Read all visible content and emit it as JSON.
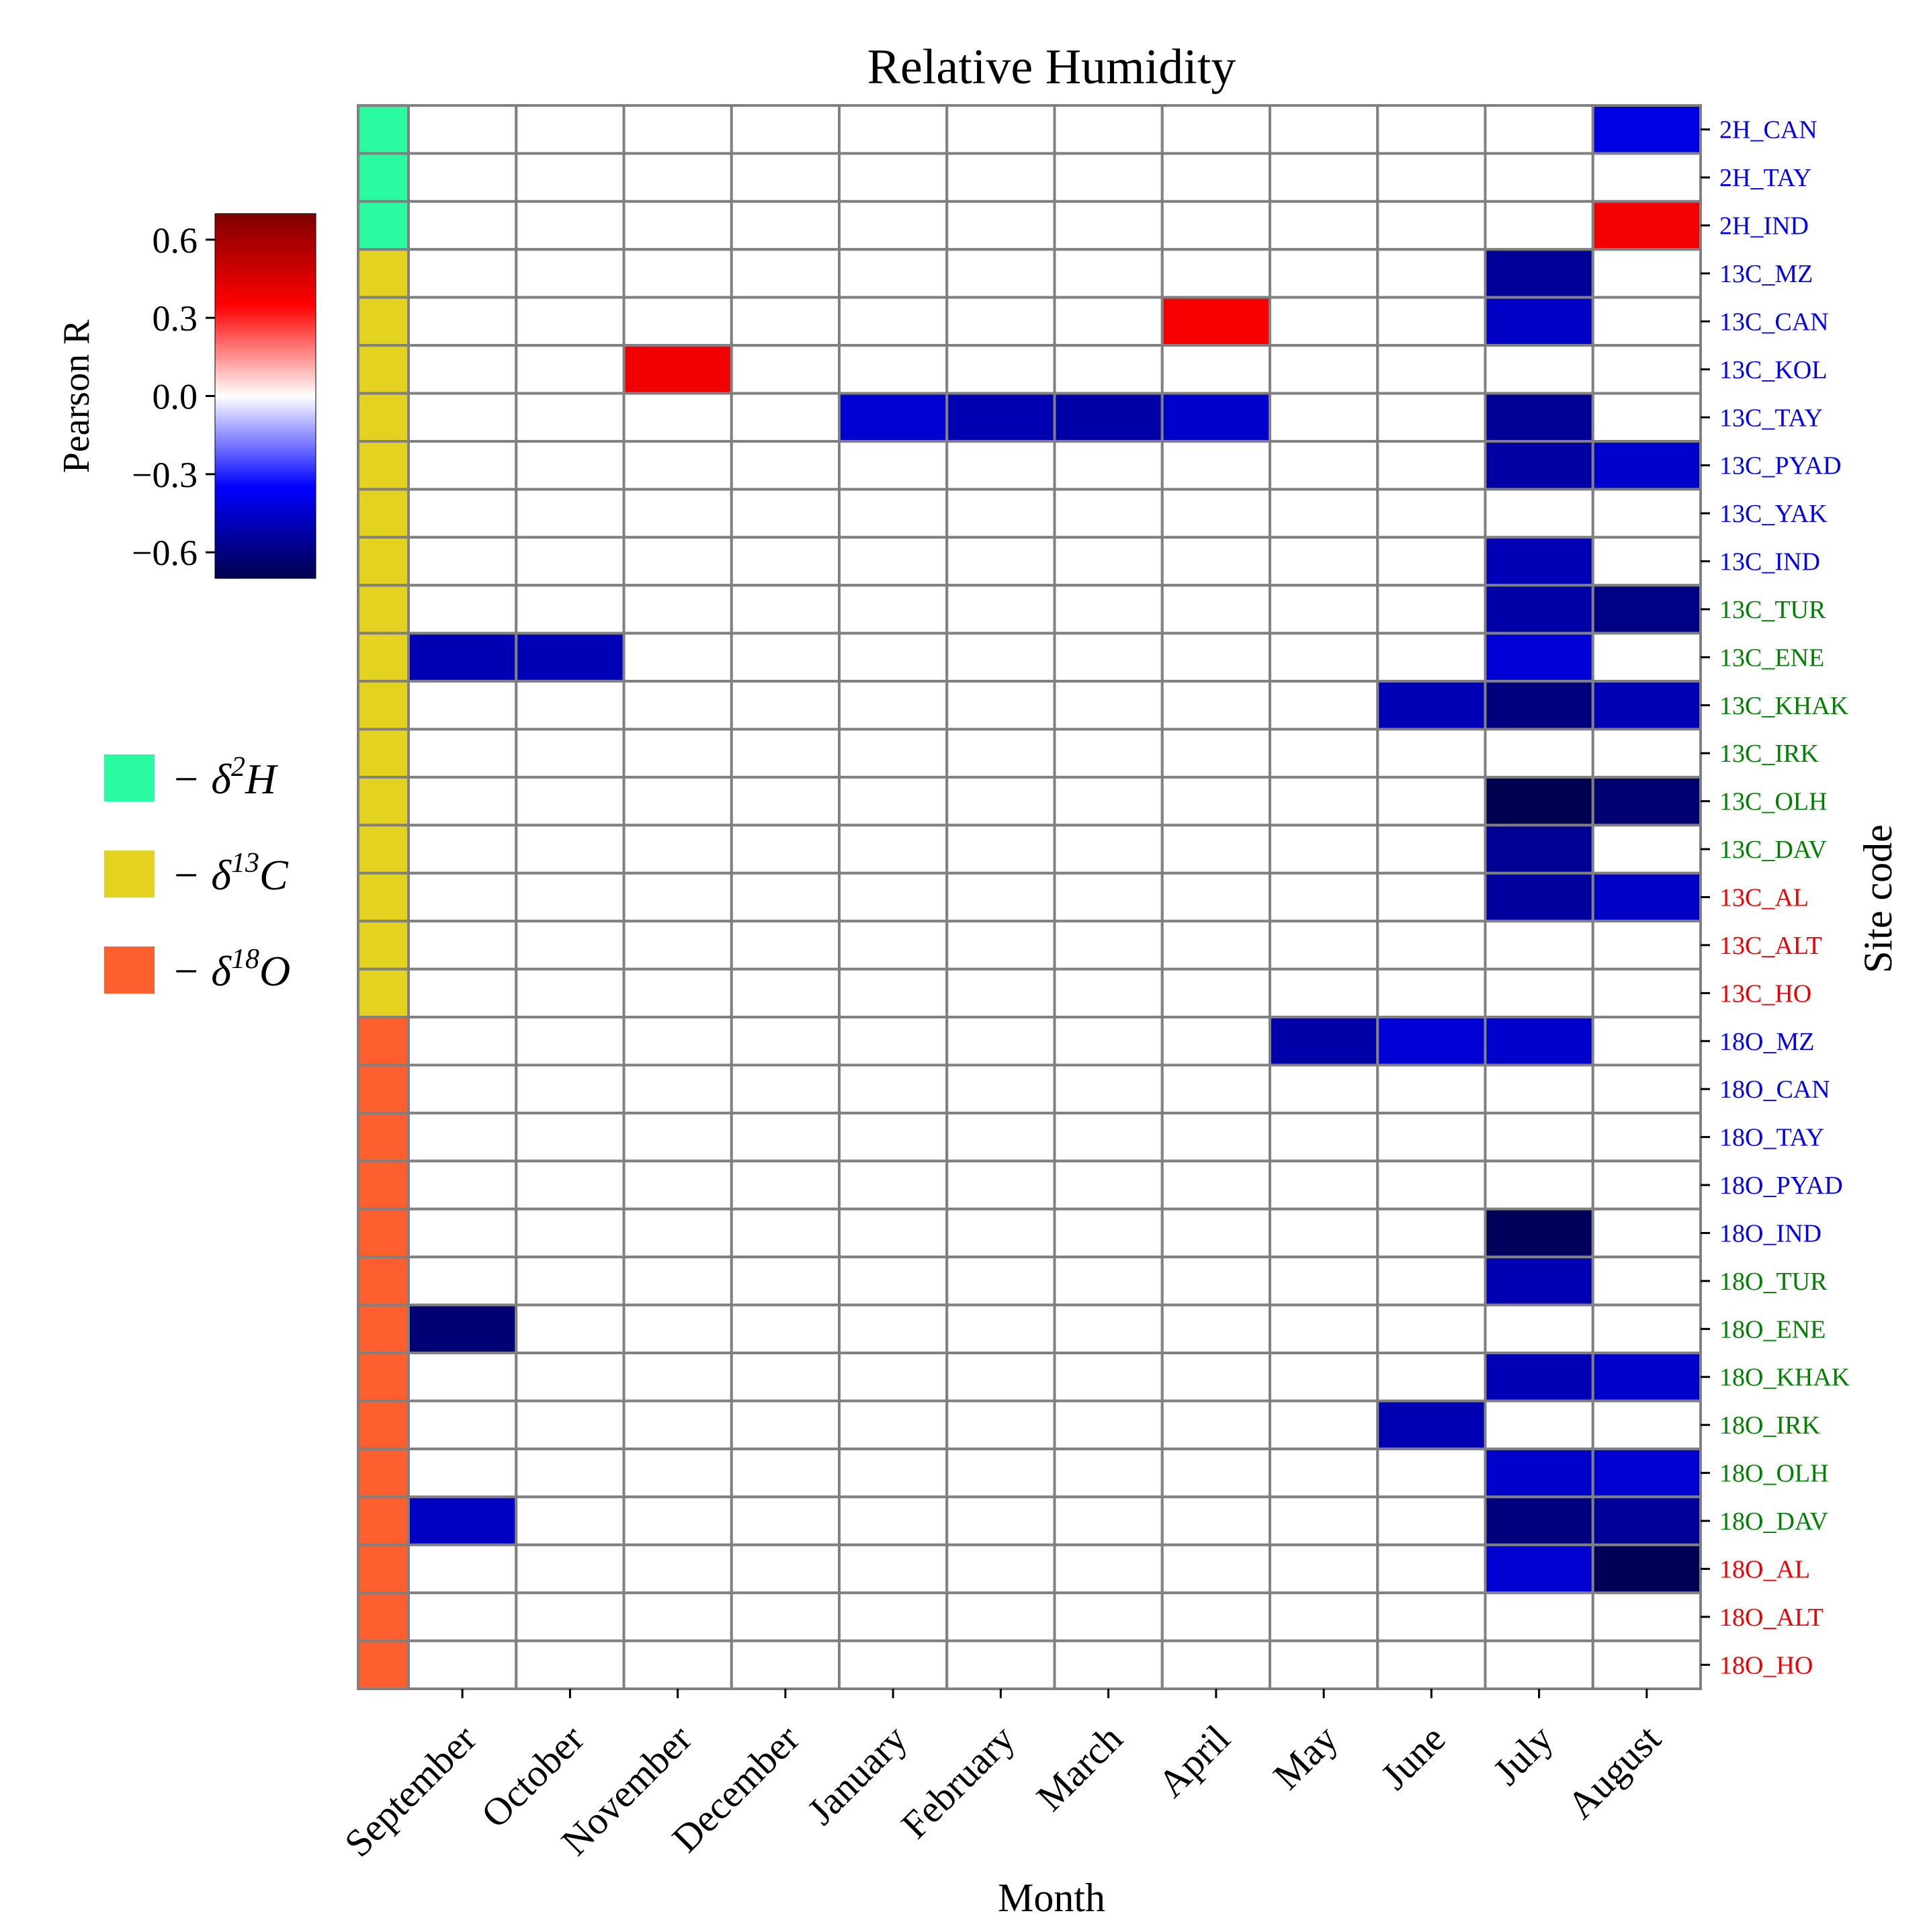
{
  "chart_data": {
    "type": "heatmap",
    "title": "Relative Humidity",
    "xlabel": "Month",
    "ylabel": "Site code",
    "colorbar": {
      "label": "Pearson R",
      "ticks": [
        "0.6",
        "0.3",
        "0.0",
        "−0.3",
        "−0.6"
      ],
      "tick_values": [
        0.6,
        0.3,
        0.0,
        -0.3,
        -0.6
      ],
      "range": [
        -0.7,
        0.7
      ],
      "colormap": "seismic"
    },
    "x_categories": [
      "September",
      "October",
      "November",
      "December",
      "January",
      "February",
      "March",
      "April",
      "May",
      "June",
      "July",
      "August"
    ],
    "rows": [
      {
        "site": "2H_CAN",
        "group": "2H",
        "label_color": "#0000ee"
      },
      {
        "site": "2H_TAY",
        "group": "2H",
        "label_color": "#0000ee"
      },
      {
        "site": "2H_IND",
        "group": "2H",
        "label_color": "#0000ee"
      },
      {
        "site": "13C_MZ",
        "group": "13C",
        "label_color": "#0000ee"
      },
      {
        "site": "13C_CAN",
        "group": "13C",
        "label_color": "#0000ee"
      },
      {
        "site": "13C_KOL",
        "group": "13C",
        "label_color": "#0000ee"
      },
      {
        "site": "13C_TAY",
        "group": "13C",
        "label_color": "#0000ee"
      },
      {
        "site": "13C_PYAD",
        "group": "13C",
        "label_color": "#0000ee"
      },
      {
        "site": "13C_YAK",
        "group": "13C",
        "label_color": "#0000ee"
      },
      {
        "site": "13C_IND",
        "group": "13C",
        "label_color": "#0000ee"
      },
      {
        "site": "13C_TUR",
        "group": "13C",
        "label_color": "#008000"
      },
      {
        "site": "13C_ENE",
        "group": "13C",
        "label_color": "#008000"
      },
      {
        "site": "13C_KHAK",
        "group": "13C",
        "label_color": "#008000"
      },
      {
        "site": "13C_IRK",
        "group": "13C",
        "label_color": "#008000"
      },
      {
        "site": "13C_OLH",
        "group": "13C",
        "label_color": "#008000"
      },
      {
        "site": "13C_DAV",
        "group": "13C",
        "label_color": "#008000"
      },
      {
        "site": "13C_AL",
        "group": "13C",
        "label_color": "#ee0000"
      },
      {
        "site": "13C_ALT",
        "group": "13C",
        "label_color": "#ee0000"
      },
      {
        "site": "13C_HO",
        "group": "13C",
        "label_color": "#ee0000"
      },
      {
        "site": "18O_MZ",
        "group": "18O",
        "label_color": "#0000ee"
      },
      {
        "site": "18O_CAN",
        "group": "18O",
        "label_color": "#0000ee"
      },
      {
        "site": "18O_TAY",
        "group": "18O",
        "label_color": "#0000ee"
      },
      {
        "site": "18O_PYAD",
        "group": "18O",
        "label_color": "#0000ee"
      },
      {
        "site": "18O_IND",
        "group": "18O",
        "label_color": "#0000ee"
      },
      {
        "site": "18O_TUR",
        "group": "18O",
        "label_color": "#008000"
      },
      {
        "site": "18O_ENE",
        "group": "18O",
        "label_color": "#008000"
      },
      {
        "site": "18O_KHAK",
        "group": "18O",
        "label_color": "#008000"
      },
      {
        "site": "18O_IRK",
        "group": "18O",
        "label_color": "#008000"
      },
      {
        "site": "18O_OLH",
        "group": "18O",
        "label_color": "#008000"
      },
      {
        "site": "18O_DAV",
        "group": "18O",
        "label_color": "#008000"
      },
      {
        "site": "18O_AL",
        "group": "18O",
        "label_color": "#ee0000"
      },
      {
        "site": "18O_ALT",
        "group": "18O",
        "label_color": "#ee0000"
      },
      {
        "site": "18O_HO",
        "group": "18O",
        "label_color": "#ee0000"
      }
    ],
    "values": [
      [
        null,
        null,
        null,
        null,
        null,
        null,
        null,
        null,
        null,
        null,
        null,
        -0.4
      ],
      [
        null,
        null,
        null,
        null,
        null,
        null,
        null,
        null,
        null,
        null,
        null,
        null
      ],
      [
        null,
        null,
        null,
        null,
        null,
        null,
        null,
        null,
        null,
        null,
        null,
        0.38
      ],
      [
        null,
        null,
        null,
        null,
        null,
        null,
        null,
        null,
        null,
        null,
        -0.55,
        null
      ],
      [
        null,
        null,
        null,
        null,
        null,
        null,
        null,
        0.37,
        null,
        null,
        -0.46,
        null
      ],
      [
        null,
        null,
        0.39,
        null,
        null,
        null,
        null,
        null,
        null,
        null,
        null,
        null
      ],
      [
        null,
        null,
        null,
        null,
        -0.44,
        -0.5,
        -0.52,
        -0.45,
        null,
        null,
        -0.56,
        null
      ],
      [
        null,
        null,
        null,
        null,
        null,
        null,
        null,
        null,
        null,
        null,
        -0.53,
        -0.45
      ],
      [
        null,
        null,
        null,
        null,
        null,
        null,
        null,
        null,
        null,
        null,
        null,
        null
      ],
      [
        null,
        null,
        null,
        null,
        null,
        null,
        null,
        null,
        null,
        null,
        -0.49,
        null
      ],
      [
        null,
        null,
        null,
        null,
        null,
        null,
        null,
        null,
        null,
        null,
        -0.52,
        -0.59
      ],
      [
        -0.5,
        -0.49,
        null,
        null,
        null,
        null,
        null,
        null,
        null,
        null,
        -0.43,
        null
      ],
      [
        null,
        null,
        null,
        null,
        null,
        null,
        null,
        null,
        null,
        -0.49,
        -0.6,
        -0.49
      ],
      [
        null,
        null,
        null,
        null,
        null,
        null,
        null,
        null,
        null,
        null,
        null,
        null
      ],
      [
        null,
        null,
        null,
        null,
        null,
        null,
        null,
        null,
        null,
        null,
        -0.69,
        -0.63
      ],
      [
        null,
        null,
        null,
        null,
        null,
        null,
        null,
        null,
        null,
        null,
        -0.56,
        null
      ],
      [
        null,
        null,
        null,
        null,
        null,
        null,
        null,
        null,
        null,
        null,
        -0.54,
        -0.46
      ],
      [
        null,
        null,
        null,
        null,
        null,
        null,
        null,
        null,
        null,
        null,
        null,
        null
      ],
      [
        null,
        null,
        null,
        null,
        null,
        null,
        null,
        null,
        null,
        null,
        null,
        null
      ],
      [
        null,
        null,
        null,
        null,
        null,
        null,
        null,
        null,
        -0.52,
        -0.43,
        -0.45,
        null
      ],
      [
        null,
        null,
        null,
        null,
        null,
        null,
        null,
        null,
        null,
        null,
        null,
        null
      ],
      [
        null,
        null,
        null,
        null,
        null,
        null,
        null,
        null,
        null,
        null,
        null,
        null
      ],
      [
        null,
        null,
        null,
        null,
        null,
        null,
        null,
        null,
        null,
        null,
        null,
        null
      ],
      [
        null,
        null,
        null,
        null,
        null,
        null,
        null,
        null,
        null,
        null,
        -0.67,
        null
      ],
      [
        null,
        null,
        null,
        null,
        null,
        null,
        null,
        null,
        null,
        null,
        -0.5,
        null
      ],
      [
        -0.62,
        null,
        null,
        null,
        null,
        null,
        null,
        null,
        null,
        null,
        null,
        null
      ],
      [
        null,
        null,
        null,
        null,
        null,
        null,
        null,
        null,
        null,
        null,
        -0.49,
        -0.45
      ],
      [
        null,
        null,
        null,
        null,
        null,
        null,
        null,
        null,
        null,
        -0.5,
        null,
        null
      ],
      [
        null,
        null,
        null,
        null,
        null,
        null,
        null,
        null,
        null,
        null,
        -0.45,
        -0.44
      ],
      [
        -0.47,
        null,
        null,
        null,
        null,
        null,
        null,
        null,
        null,
        null,
        -0.6,
        -0.55
      ],
      [
        null,
        null,
        null,
        null,
        null,
        null,
        null,
        null,
        null,
        null,
        -0.44,
        -0.68
      ],
      [
        null,
        null,
        null,
        null,
        null,
        null,
        null,
        null,
        null,
        null,
        null,
        null
      ],
      [
        null,
        null,
        null,
        null,
        null,
        null,
        null,
        null,
        null,
        null,
        null,
        null
      ]
    ],
    "groups": [
      {
        "key": "2H",
        "color": "#2afaa0",
        "legend_prefix": "− δ",
        "legend_sup": "2",
        "legend_element": "H"
      },
      {
        "key": "13C",
        "color": "#e3d320",
        "legend_prefix": "− δ",
        "legend_sup": "13",
        "legend_element": "C"
      },
      {
        "key": "18O",
        "color": "#ff5f2e",
        "legend_prefix": "− δ",
        "legend_sup": "18",
        "legend_element": "O"
      }
    ],
    "colors": {
      "grid": "#808080",
      "empty_cell": "#ffffff",
      "axis": "#000000"
    }
  }
}
